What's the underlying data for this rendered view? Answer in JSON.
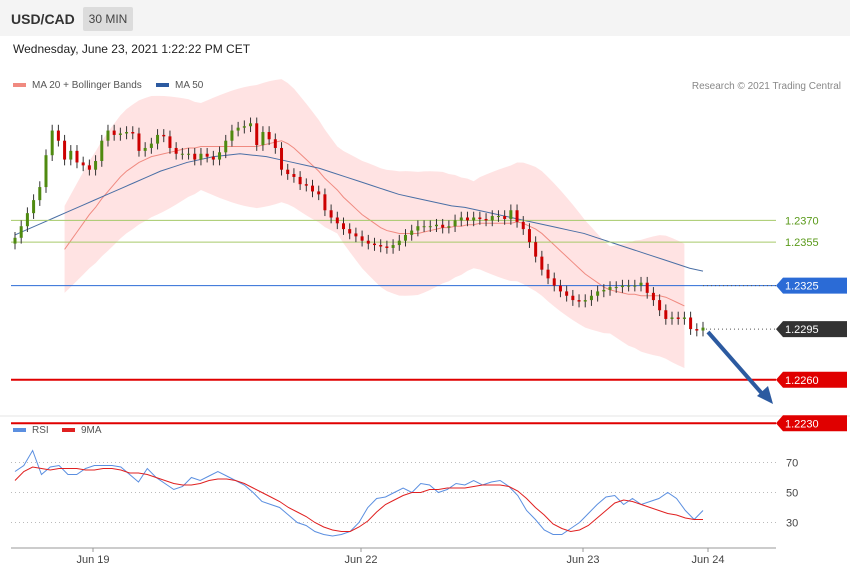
{
  "header": {
    "symbol": "USD/CAD",
    "timeframe": "30 MIN"
  },
  "datetime": "Wednesday, June 23, 2021 1:22:22 PM CET",
  "legend": {
    "ma20_label": "MA 20 + Bollinger Bands",
    "ma50_label": "MA 50",
    "copyright": "Research © 2021 Trading Central",
    "rsi_label": "RSI",
    "rsi_ma_label": "9MA"
  },
  "colors": {
    "up": "#4f8a10",
    "down": "#cc0000",
    "bands": "#ffdede",
    "ma20": "#f08a80",
    "ma50": "#4a6fa5",
    "resistance": "#a6c96a",
    "pivot": "#2b6bd6",
    "support": "#e00000",
    "current": "#333333",
    "arrow": "#2c5aa0",
    "rsi": "#5b8fe0",
    "rsi_ma": "#e02020"
  },
  "chart_data": [
    {
      "type": "line",
      "title": "USD/CAD 30 MIN",
      "x_ticks": [
        "Jun 19",
        "Jun 22",
        "Jun 23",
        "Jun 24"
      ],
      "ylim": [
        1.2215,
        1.246
      ],
      "close": [
        1.2358,
        1.2366,
        1.2375,
        1.2384,
        1.2393,
        1.2415,
        1.2432,
        1.2425,
        1.2412,
        1.2418,
        1.241,
        1.2408,
        1.2405,
        1.2411,
        1.2425,
        1.2432,
        1.2429,
        1.243,
        1.2431,
        1.243,
        1.2418,
        1.242,
        1.2423,
        1.2429,
        1.2428,
        1.242,
        1.2416,
        1.2416,
        1.2416,
        1.2412,
        1.2416,
        1.2414,
        1.2412,
        1.2417,
        1.2425,
        1.2432,
        1.2434,
        1.2435,
        1.2437,
        1.2422,
        1.2431,
        1.2426,
        1.242,
        1.2405,
        1.2402,
        1.24,
        1.2395,
        1.2394,
        1.239,
        1.2388,
        1.2377,
        1.2372,
        1.2368,
        1.2364,
        1.2361,
        1.2359,
        1.2356,
        1.2354,
        1.2353,
        1.2352,
        1.2351,
        1.2353,
        1.2356,
        1.236,
        1.2363,
        1.2366,
        1.2366,
        1.2366,
        1.2367,
        1.2365,
        1.2366,
        1.237,
        1.2372,
        1.237,
        1.2372,
        1.2371,
        1.237,
        1.2373,
        1.2373,
        1.2371,
        1.2377,
        1.2369,
        1.2364,
        1.2355,
        1.2345,
        1.2336,
        1.233,
        1.2325,
        1.2321,
        1.2318,
        1.2315,
        1.2314,
        1.2315,
        1.2318,
        1.2321,
        1.2322,
        1.2324,
        1.2324,
        1.2325,
        1.2325,
        1.2325,
        1.2327,
        1.232,
        1.2315,
        1.2308,
        1.2302,
        1.2303,
        1.2302,
        1.2303,
        1.2295,
        1.2294,
        1.2296
      ],
      "ma20": [
        1.235,
        1.2356,
        1.2362,
        1.2368,
        1.2374,
        1.2379,
        1.2385,
        1.239,
        1.2395,
        1.24,
        1.2404,
        1.2407,
        1.241,
        1.2412,
        1.2414,
        1.2415,
        1.2416,
        1.2417,
        1.2418,
        1.2419,
        1.242,
        1.242,
        1.2421,
        1.2421,
        1.2421,
        1.2421,
        1.2421,
        1.2421,
        1.2421,
        1.2421,
        1.2421,
        1.2421,
        1.2422,
        1.2423,
        1.2424,
        1.2425,
        1.2423,
        1.242,
        1.2416,
        1.2412,
        1.2408,
        1.2404,
        1.2399,
        1.2395,
        1.2391,
        1.2386,
        1.2382,
        1.2378,
        1.2374,
        1.2371,
        1.2368,
        1.2365,
        1.2363,
        1.2362,
        1.2361,
        1.2361,
        1.2361,
        1.2361,
        1.2362,
        1.2363,
        1.2364,
        1.2365,
        1.2365,
        1.2366,
        1.2366,
        1.2367,
        1.2367,
        1.2368,
        1.2368,
        1.2368,
        1.2368,
        1.2368,
        1.2368,
        1.2369,
        1.2368,
        1.2366,
        1.2364,
        1.2361,
        1.2357,
        1.2353,
        1.2349,
        1.2345,
        1.2341,
        1.2337,
        1.2333,
        1.233,
        1.2327,
        1.2324,
        1.2322,
        1.2321,
        1.232,
        1.2319,
        1.2319,
        1.2318,
        1.2318,
        1.2318,
        1.2318,
        1.2317,
        1.2315,
        1.2313,
        1.2311
      ],
      "ma50": [
        1.236,
        1.2364,
        1.2368,
        1.2372,
        1.2376,
        1.238,
        1.2384,
        1.2388,
        1.2392,
        1.2396,
        1.24,
        1.2404,
        1.2407,
        1.241,
        1.2412,
        1.2414,
        1.2415,
        1.2416,
        1.2415,
        1.2414,
        1.2412,
        1.241,
        1.2408,
        1.2406,
        1.2403,
        1.24,
        1.2397,
        1.2394,
        1.2391,
        1.2388,
        1.2386,
        1.2384,
        1.2382,
        1.238,
        1.2379,
        1.2377,
        1.2375,
        1.2373,
        1.2371,
        1.2369,
        1.2367,
        1.2365,
        1.2363,
        1.2361,
        1.2358,
        1.2355,
        1.2352,
        1.2349,
        1.2346,
        1.2343,
        1.234,
        1.2337,
        1.2335
      ],
      "levels": [
        {
          "name": "resistance-2",
          "value": "1.2370"
        },
        {
          "name": "resistance-1",
          "value": "1.2355"
        },
        {
          "name": "pivot",
          "value": "1.2325"
        },
        {
          "name": "current",
          "value": "1.2295"
        },
        {
          "name": "support-1",
          "value": "1.2260"
        },
        {
          "name": "support-2",
          "value": "1.2230"
        }
      ],
      "series": [
        {
          "name": "MA 20 + Bollinger Bands"
        },
        {
          "name": "MA 50"
        }
      ],
      "grid": false
    },
    {
      "type": "line",
      "title": "RSI",
      "y_ticks": [
        "70",
        "50",
        "30"
      ],
      "ylim": [
        15,
        85
      ],
      "series": [
        {
          "name": "RSI",
          "values": [
            64,
            68,
            78,
            62,
            67,
            68,
            62,
            62,
            66,
            68,
            68,
            68,
            67,
            62,
            57,
            66,
            60,
            56,
            52,
            54,
            60,
            58,
            61,
            64,
            61,
            58,
            55,
            50,
            44,
            42,
            40,
            35,
            30,
            28,
            24,
            22,
            21,
            22,
            24,
            30,
            40,
            46,
            47,
            50,
            53,
            50,
            56,
            55,
            50,
            52,
            56,
            55,
            58,
            55,
            57,
            58,
            54,
            48,
            38,
            32,
            25,
            22,
            22,
            26,
            30,
            36,
            42,
            47,
            48,
            42,
            46,
            42,
            44,
            46,
            50,
            46,
            38,
            32,
            38
          ]
        },
        {
          "name": "9MA",
          "values": [
            58,
            64,
            67,
            66,
            65,
            66,
            66,
            66,
            65,
            65,
            66,
            66,
            65,
            63,
            63,
            62,
            60,
            58,
            56,
            55,
            55,
            56,
            58,
            59,
            59,
            58,
            56,
            53,
            50,
            47,
            44,
            40,
            37,
            34,
            30,
            27,
            25,
            24,
            24,
            27,
            31,
            37,
            42,
            45,
            48,
            50,
            50,
            52,
            52,
            53,
            53,
            53,
            54,
            55,
            55,
            55,
            54,
            51,
            46,
            40,
            35,
            29,
            26,
            24,
            25,
            28,
            33,
            38,
            43,
            45,
            44,
            42,
            40,
            38,
            36,
            35,
            33,
            32,
            32
          ]
        }
      ],
      "grid": false
    }
  ]
}
